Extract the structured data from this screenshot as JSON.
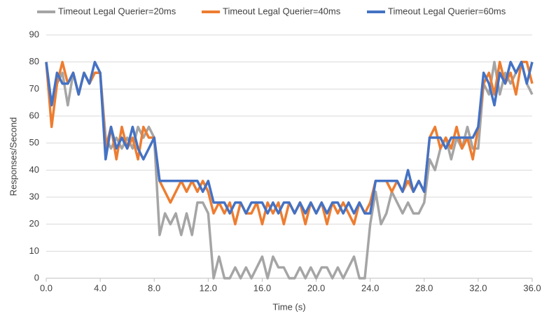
{
  "chart_data": {
    "type": "line",
    "xlabel": "Time (s)",
    "ylabel": "Responses/Second",
    "x": [
      0,
      0.4,
      0.8,
      1.2,
      1.6,
      2,
      2.4,
      2.8,
      3.2,
      3.6,
      4,
      4.4,
      4.8,
      5.2,
      5.6,
      6,
      6.4,
      6.8,
      7.2,
      7.6,
      8,
      8.4,
      8.8,
      9.2,
      9.6,
      10,
      10.4,
      10.8,
      11.2,
      11.6,
      12,
      12.4,
      12.8,
      13.2,
      13.6,
      14,
      14.4,
      14.8,
      15.2,
      15.6,
      16,
      16.4,
      16.8,
      17.2,
      17.6,
      18,
      18.4,
      18.8,
      19.2,
      19.6,
      20,
      20.4,
      20.8,
      21.2,
      21.6,
      22,
      22.4,
      22.8,
      23.2,
      23.6,
      24,
      24.4,
      24.8,
      25.2,
      25.6,
      26,
      26.4,
      26.8,
      27.2,
      27.6,
      28,
      28.4,
      28.8,
      29.2,
      29.6,
      30,
      30.4,
      30.8,
      31.2,
      31.6,
      32,
      32.4,
      32.8,
      33.2,
      33.6,
      34,
      34.4,
      34.8,
      35.2,
      35.6,
      36
    ],
    "series": [
      {
        "name": "Timeout Legal Querier=20ms",
        "color": "#a5a5a5",
        "values": [
          80,
          64,
          72,
          76,
          64,
          76,
          68,
          76,
          72,
          76,
          76,
          52,
          48,
          52,
          48,
          52,
          48,
          56,
          52,
          56,
          52,
          16,
          24,
          20,
          24,
          16,
          24,
          16,
          28,
          28,
          24,
          0,
          8,
          0,
          0,
          4,
          0,
          4,
          0,
          4,
          8,
          0,
          8,
          4,
          4,
          0,
          0,
          4,
          0,
          4,
          0,
          4,
          4,
          0,
          4,
          0,
          4,
          8,
          0,
          0,
          20,
          32,
          20,
          24,
          32,
          28,
          24,
          28,
          24,
          24,
          28,
          44,
          40,
          48,
          52,
          44,
          52,
          48,
          56,
          48,
          48,
          72,
          68,
          80,
          68,
          76,
          72,
          76,
          80,
          72,
          68
        ]
      },
      {
        "name": "Timeout Legal Querier=40ms",
        "color": "#ed7d31",
        "values": [
          80,
          56,
          72,
          80,
          72,
          76,
          68,
          76,
          72,
          76,
          76,
          48,
          56,
          44,
          56,
          48,
          52,
          44,
          56,
          52,
          52,
          36,
          32,
          28,
          32,
          36,
          32,
          36,
          32,
          36,
          32,
          24,
          28,
          24,
          28,
          20,
          28,
          24,
          24,
          28,
          20,
          28,
          24,
          28,
          20,
          28,
          24,
          28,
          20,
          28,
          24,
          28,
          20,
          28,
          24,
          28,
          24,
          20,
          28,
          24,
          28,
          36,
          36,
          36,
          32,
          36,
          32,
          36,
          32,
          36,
          32,
          52,
          56,
          48,
          52,
          48,
          56,
          48,
          52,
          44,
          56,
          72,
          76,
          68,
          80,
          72,
          76,
          68,
          80,
          80,
          72
        ]
      },
      {
        "name": "Timeout Legal Querier=60ms",
        "color": "#4472c4",
        "values": [
          80,
          64,
          76,
          72,
          72,
          76,
          68,
          76,
          72,
          80,
          76,
          44,
          56,
          48,
          52,
          48,
          56,
          48,
          44,
          48,
          52,
          36,
          36,
          36,
          36,
          36,
          36,
          36,
          36,
          32,
          36,
          28,
          28,
          28,
          24,
          28,
          28,
          24,
          28,
          28,
          28,
          24,
          28,
          24,
          28,
          28,
          24,
          28,
          24,
          28,
          24,
          28,
          24,
          28,
          28,
          24,
          28,
          24,
          28,
          24,
          24,
          36,
          36,
          36,
          36,
          36,
          32,
          40,
          32,
          36,
          32,
          52,
          52,
          52,
          48,
          52,
          52,
          52,
          52,
          52,
          56,
          76,
          72,
          64,
          76,
          72,
          80,
          76,
          80,
          72,
          80
        ]
      }
    ],
    "xlim": [
      0,
      36
    ],
    "xticks": [
      {
        "value": 0,
        "label": "0.0"
      },
      {
        "value": 4,
        "label": "4.0"
      },
      {
        "value": 8,
        "label": "8.0"
      },
      {
        "value": 12,
        "label": "12.0"
      },
      {
        "value": 16,
        "label": "16.0"
      },
      {
        "value": 20,
        "label": "20.0"
      },
      {
        "value": 24,
        "label": "24.0"
      },
      {
        "value": 28,
        "label": "28.0"
      },
      {
        "value": 32,
        "label": "32.0"
      },
      {
        "value": 36,
        "label": "36.0"
      }
    ],
    "ylim": [
      0,
      90
    ],
    "yticks": [
      0,
      10,
      20,
      30,
      40,
      50,
      60,
      70,
      80,
      90
    ],
    "grid": true,
    "legend": "top"
  }
}
